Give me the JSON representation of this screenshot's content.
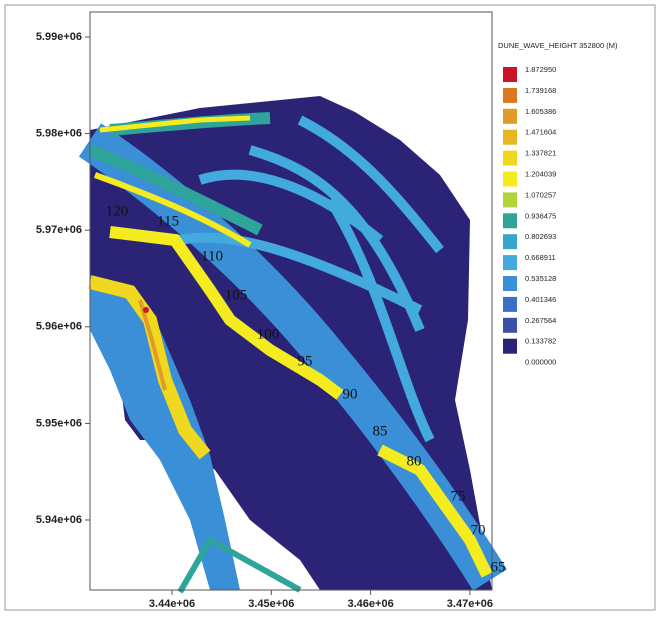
{
  "map": {
    "y_ticks": [
      "5.99e+06",
      "5.98e+06",
      "5.97e+06",
      "5.96e+06",
      "5.95e+06",
      "5.94e+06"
    ],
    "x_ticks": [
      "3.44e+06",
      "3.45e+06",
      "3.46e+06",
      "3.47e+06"
    ],
    "legend": {
      "title": "DUNE_WAVE_HEIGHT 352800 (M)",
      "entries": [
        {
          "label": "1.872950",
          "color": "#cc1428"
        },
        {
          "label": "1.739168",
          "color": "#d9781e"
        },
        {
          "label": "1.605386",
          "color": "#e29a26"
        },
        {
          "label": "1.471604",
          "color": "#e8b71f"
        },
        {
          "label": "1.337821",
          "color": "#efd81d"
        },
        {
          "label": "1.204039",
          "color": "#f5ec1f"
        },
        {
          "label": "1.070257",
          "color": "#b4d33b"
        },
        {
          "label": "0.936475",
          "color": "#2ea49a"
        },
        {
          "label": "0.802693",
          "color": "#37a6cc"
        },
        {
          "label": "0.668911",
          "color": "#42aadd"
        },
        {
          "label": "0.535128",
          "color": "#3a8fd6"
        },
        {
          "label": "0.401346",
          "color": "#3a6fc6"
        },
        {
          "label": "0.267564",
          "color": "#3a4fa6"
        },
        {
          "label": "0.133782",
          "color": "#2b2376"
        },
        {
          "label": "0.000000",
          "color": "#ffffff"
        }
      ]
    },
    "river_km": [
      "120",
      "115",
      "110",
      "105",
      "100",
      "95",
      "90",
      "85",
      "80",
      "75",
      "70",
      "65"
    ]
  }
}
